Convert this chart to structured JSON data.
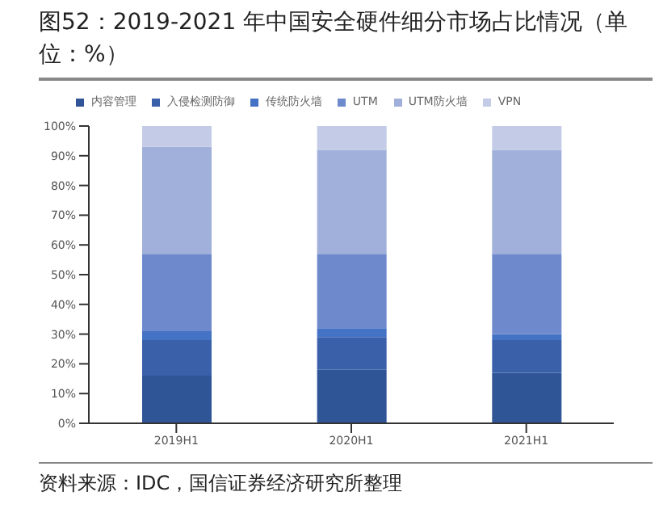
{
  "chart_data": {
    "type": "bar",
    "title": "图52：2019-2021 年中国安全硬件细分市场占比情况（单位：%）",
    "categories": [
      "2019H1",
      "2020H1",
      "2021H1"
    ],
    "stacked": true,
    "series": [
      {
        "name": "内容管理",
        "color": "#2f5597",
        "values": [
          16,
          18,
          17
        ]
      },
      {
        "name": "入侵检测防御",
        "color": "#3a60aa",
        "values": [
          12,
          11,
          11
        ]
      },
      {
        "name": "传统防火墙",
        "color": "#4472c4",
        "values": [
          3,
          3,
          2
        ]
      },
      {
        "name": "UTM",
        "color": "#6f8acc",
        "values": [
          26,
          25,
          27
        ]
      },
      {
        "name": "UTM防火墙",
        "color": "#a1b0da",
        "values": [
          36,
          35,
          35
        ]
      },
      {
        "name": "VPN",
        "color": "#c3cbe6",
        "values": [
          7,
          8,
          8
        ]
      }
    ],
    "ylim": [
      0,
      100
    ],
    "yticks": [
      {
        "value": 0,
        "label": "0%"
      },
      {
        "value": 10,
        "label": "10%"
      },
      {
        "value": 20,
        "label": "20%"
      },
      {
        "value": 30,
        "label": "30%"
      },
      {
        "value": 40,
        "label": "40%"
      },
      {
        "value": 50,
        "label": "50%"
      },
      {
        "value": 60,
        "label": "60%"
      },
      {
        "value": 70,
        "label": "70%"
      },
      {
        "value": 80,
        "label": "80%"
      },
      {
        "value": 90,
        "label": "90%"
      },
      {
        "value": 100,
        "label": "100%"
      }
    ],
    "grid": false,
    "legend": "top",
    "annotations": [
      "资料来源：IDC，国信证券经济研究所整理"
    ]
  }
}
